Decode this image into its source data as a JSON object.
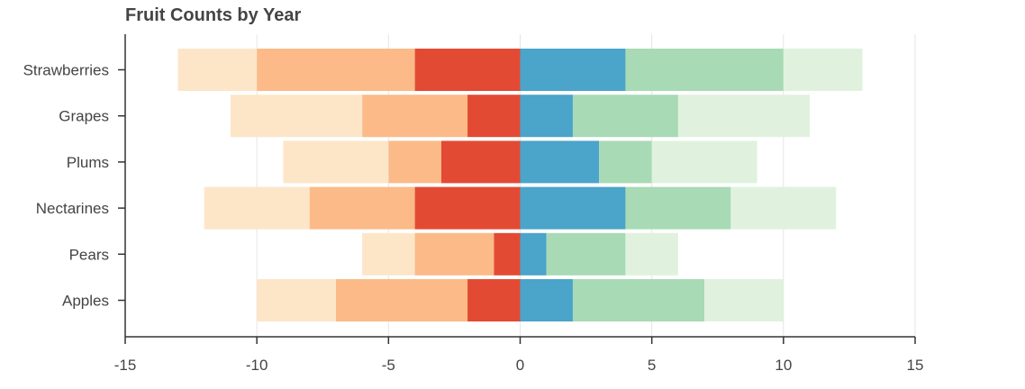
{
  "chart_data": {
    "type": "bar",
    "orientation": "horizontal",
    "stacked": "diverging",
    "title": "Fruit Counts by Year",
    "xlabel": "",
    "ylabel": "",
    "xlim": [
      -15,
      15
    ],
    "x_ticks": [
      "-15",
      "-10",
      "-5",
      "0",
      "5",
      "10",
      "15"
    ],
    "grid": {
      "vertical": true,
      "horizontal": false
    },
    "legend": "none",
    "categories": [
      "Apples",
      "Pears",
      "Nectarines",
      "Plums",
      "Grapes",
      "Strawberries"
    ],
    "series": [
      {
        "color": "#4ba4c9",
        "values": [
          2,
          1,
          4,
          3,
          2,
          4
        ]
      },
      {
        "color": "#a8dab5",
        "values": [
          5,
          3,
          4,
          2,
          4,
          6
        ]
      },
      {
        "color": "#e0f2de",
        "values": [
          3,
          2,
          4,
          4,
          5,
          3
        ]
      },
      {
        "color": "#e34a33",
        "values": [
          -2,
          -1,
          -4,
          -3,
          -2,
          -4
        ]
      },
      {
        "color": "#fbba88",
        "values": [
          -5,
          -3,
          -4,
          -2,
          -4,
          -6
        ]
      },
      {
        "color": "#fde6c8",
        "values": [
          -3,
          -2,
          -4,
          -4,
          -5,
          -3
        ]
      }
    ]
  }
}
